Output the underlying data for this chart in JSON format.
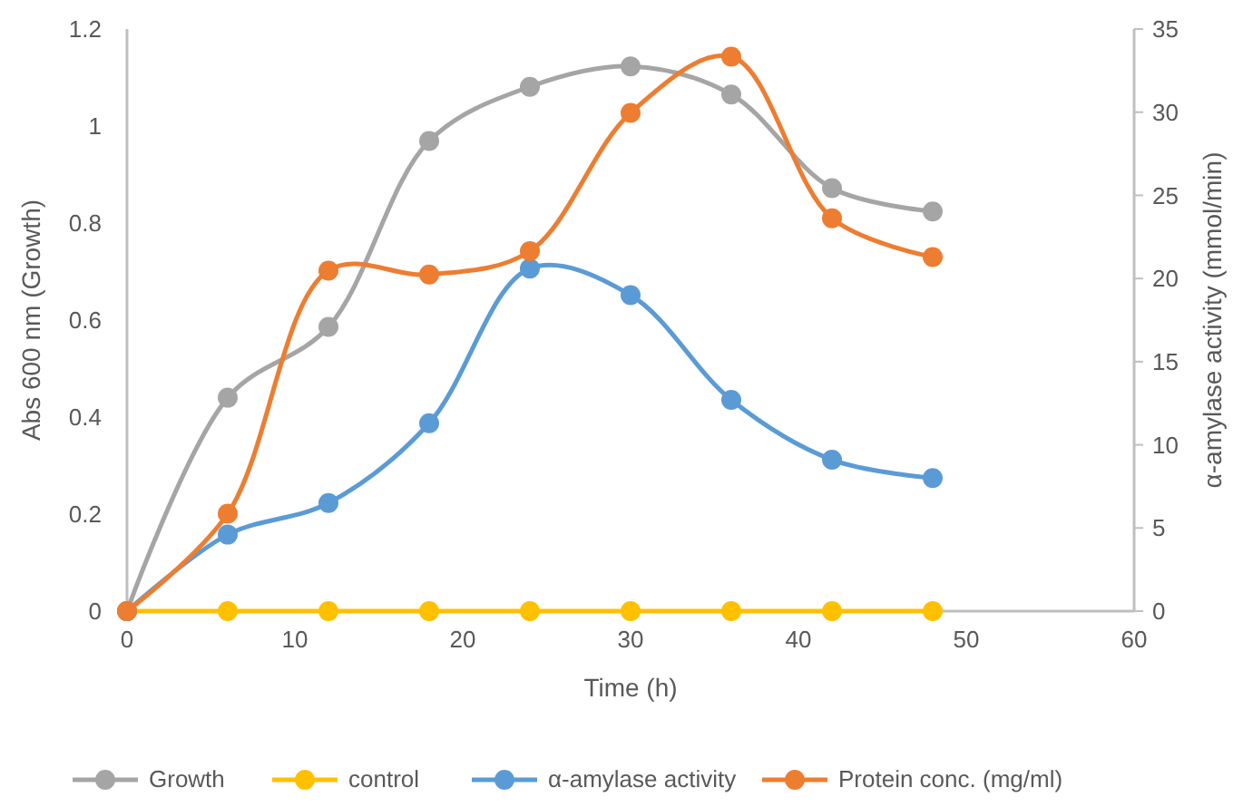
{
  "chart_data": {
    "type": "line",
    "xlabel": "Time (h)",
    "ylabel": "Abs 600 nm (Growth)",
    "y2label": "α-amylase activity (mmol/min)",
    "x": [
      0,
      6,
      12,
      18,
      24,
      30,
      36,
      42,
      48
    ],
    "series": [
      {
        "name": "Growth",
        "color": "#a5a5a5",
        "values": [
          0,
          0.44,
          0.586,
          0.969,
          1.081,
          1.123,
          1.065,
          0.872,
          0.824
        ]
      },
      {
        "name": "control",
        "color": "#ffc000",
        "values": [
          0,
          0,
          0,
          0,
          0,
          0,
          0,
          0,
          0
        ]
      },
      {
        "name": "α-amylase activity",
        "color": "#5b9bd5",
        "axis": "y2",
        "values": [
          0,
          4.6,
          6.5,
          11.3,
          20.6,
          19.0,
          12.7,
          9.1,
          8.0
        ]
      },
      {
        "name": "Protein conc. (mg/ml)",
        "color": "#ed7d31",
        "values": [
          0,
          0.201,
          0.702,
          0.694,
          0.742,
          1.027,
          1.143,
          0.81,
          0.73
        ]
      }
    ],
    "xlim": [
      0,
      60
    ],
    "xticks": [
      0,
      10,
      20,
      30,
      40,
      50,
      60
    ],
    "ylim": [
      0,
      1.2
    ],
    "yticks": [
      0,
      0.2,
      0.4,
      0.6,
      0.8,
      1,
      1.2
    ],
    "y2lim": [
      0,
      35
    ],
    "y2ticks": [
      0,
      5,
      10,
      15,
      20,
      25,
      30,
      35
    ],
    "marker": "circle",
    "line_style": "solid",
    "legend": "bottom",
    "grid": false
  }
}
